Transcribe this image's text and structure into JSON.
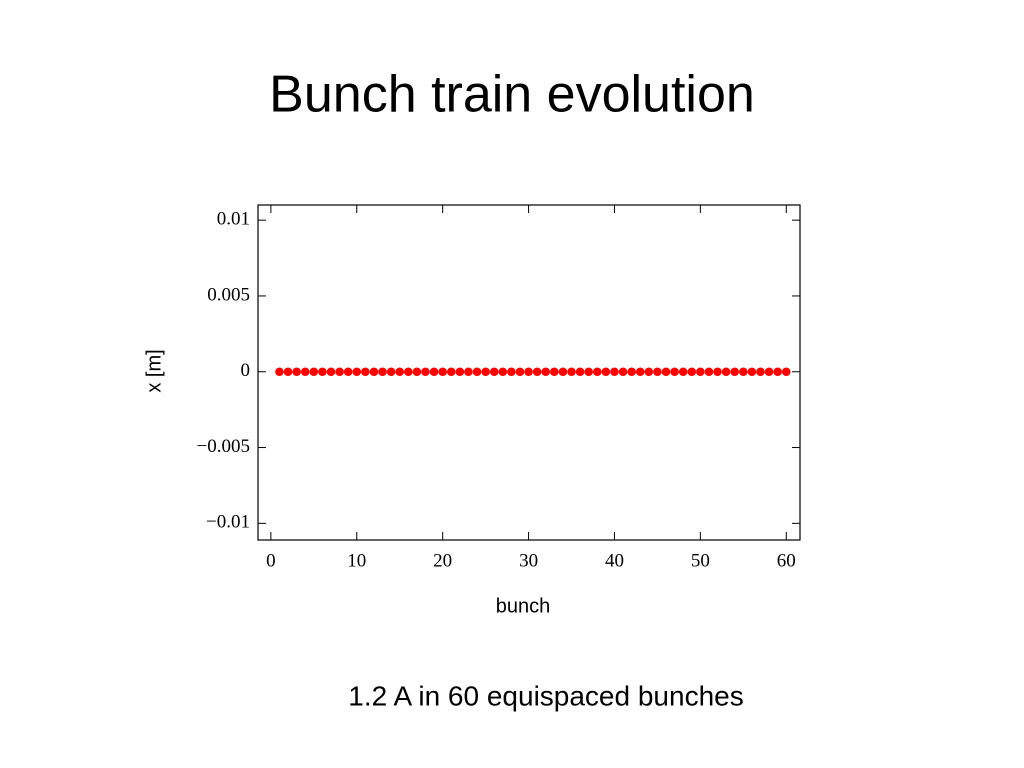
{
  "chart_data": {
    "type": "scatter",
    "title": "Bunch train evolution",
    "xlabel": "bunch",
    "ylabel": "x [m]",
    "annotation": "1.2 A in 60 equispaced bunches",
    "x": [
      1,
      2,
      3,
      4,
      5,
      6,
      7,
      8,
      9,
      10,
      11,
      12,
      13,
      14,
      15,
      16,
      17,
      18,
      19,
      20,
      21,
      22,
      23,
      24,
      25,
      26,
      27,
      28,
      29,
      30,
      31,
      32,
      33,
      34,
      35,
      36,
      37,
      38,
      39,
      40,
      41,
      42,
      43,
      44,
      45,
      46,
      47,
      48,
      49,
      50,
      51,
      52,
      53,
      54,
      55,
      56,
      57,
      58,
      59,
      60
    ],
    "values": [
      0,
      0,
      0,
      0,
      0,
      0,
      0,
      0,
      0,
      0,
      0,
      0,
      0,
      0,
      0,
      0,
      0,
      0,
      0,
      0,
      0,
      0,
      0,
      0,
      0,
      0,
      0,
      0,
      0,
      0,
      0,
      0,
      0,
      0,
      0,
      0,
      0,
      0,
      0,
      0,
      0,
      0,
      0,
      0,
      0,
      0,
      0,
      0,
      0,
      0,
      0,
      0,
      0,
      0,
      0,
      0,
      0,
      0,
      0,
      0
    ],
    "color": "#ff0000",
    "xlim": [
      -1.5,
      61.6
    ],
    "ylim": [
      -0.0111,
      0.011
    ],
    "xticks": [
      0,
      10,
      20,
      30,
      40,
      50,
      60
    ],
    "yticks": [
      0.01,
      0.005,
      0,
      {
        "value": -0.005,
        "label": "−0.005"
      },
      {
        "value": -0.01,
        "label": "−0.01"
      }
    ]
  }
}
